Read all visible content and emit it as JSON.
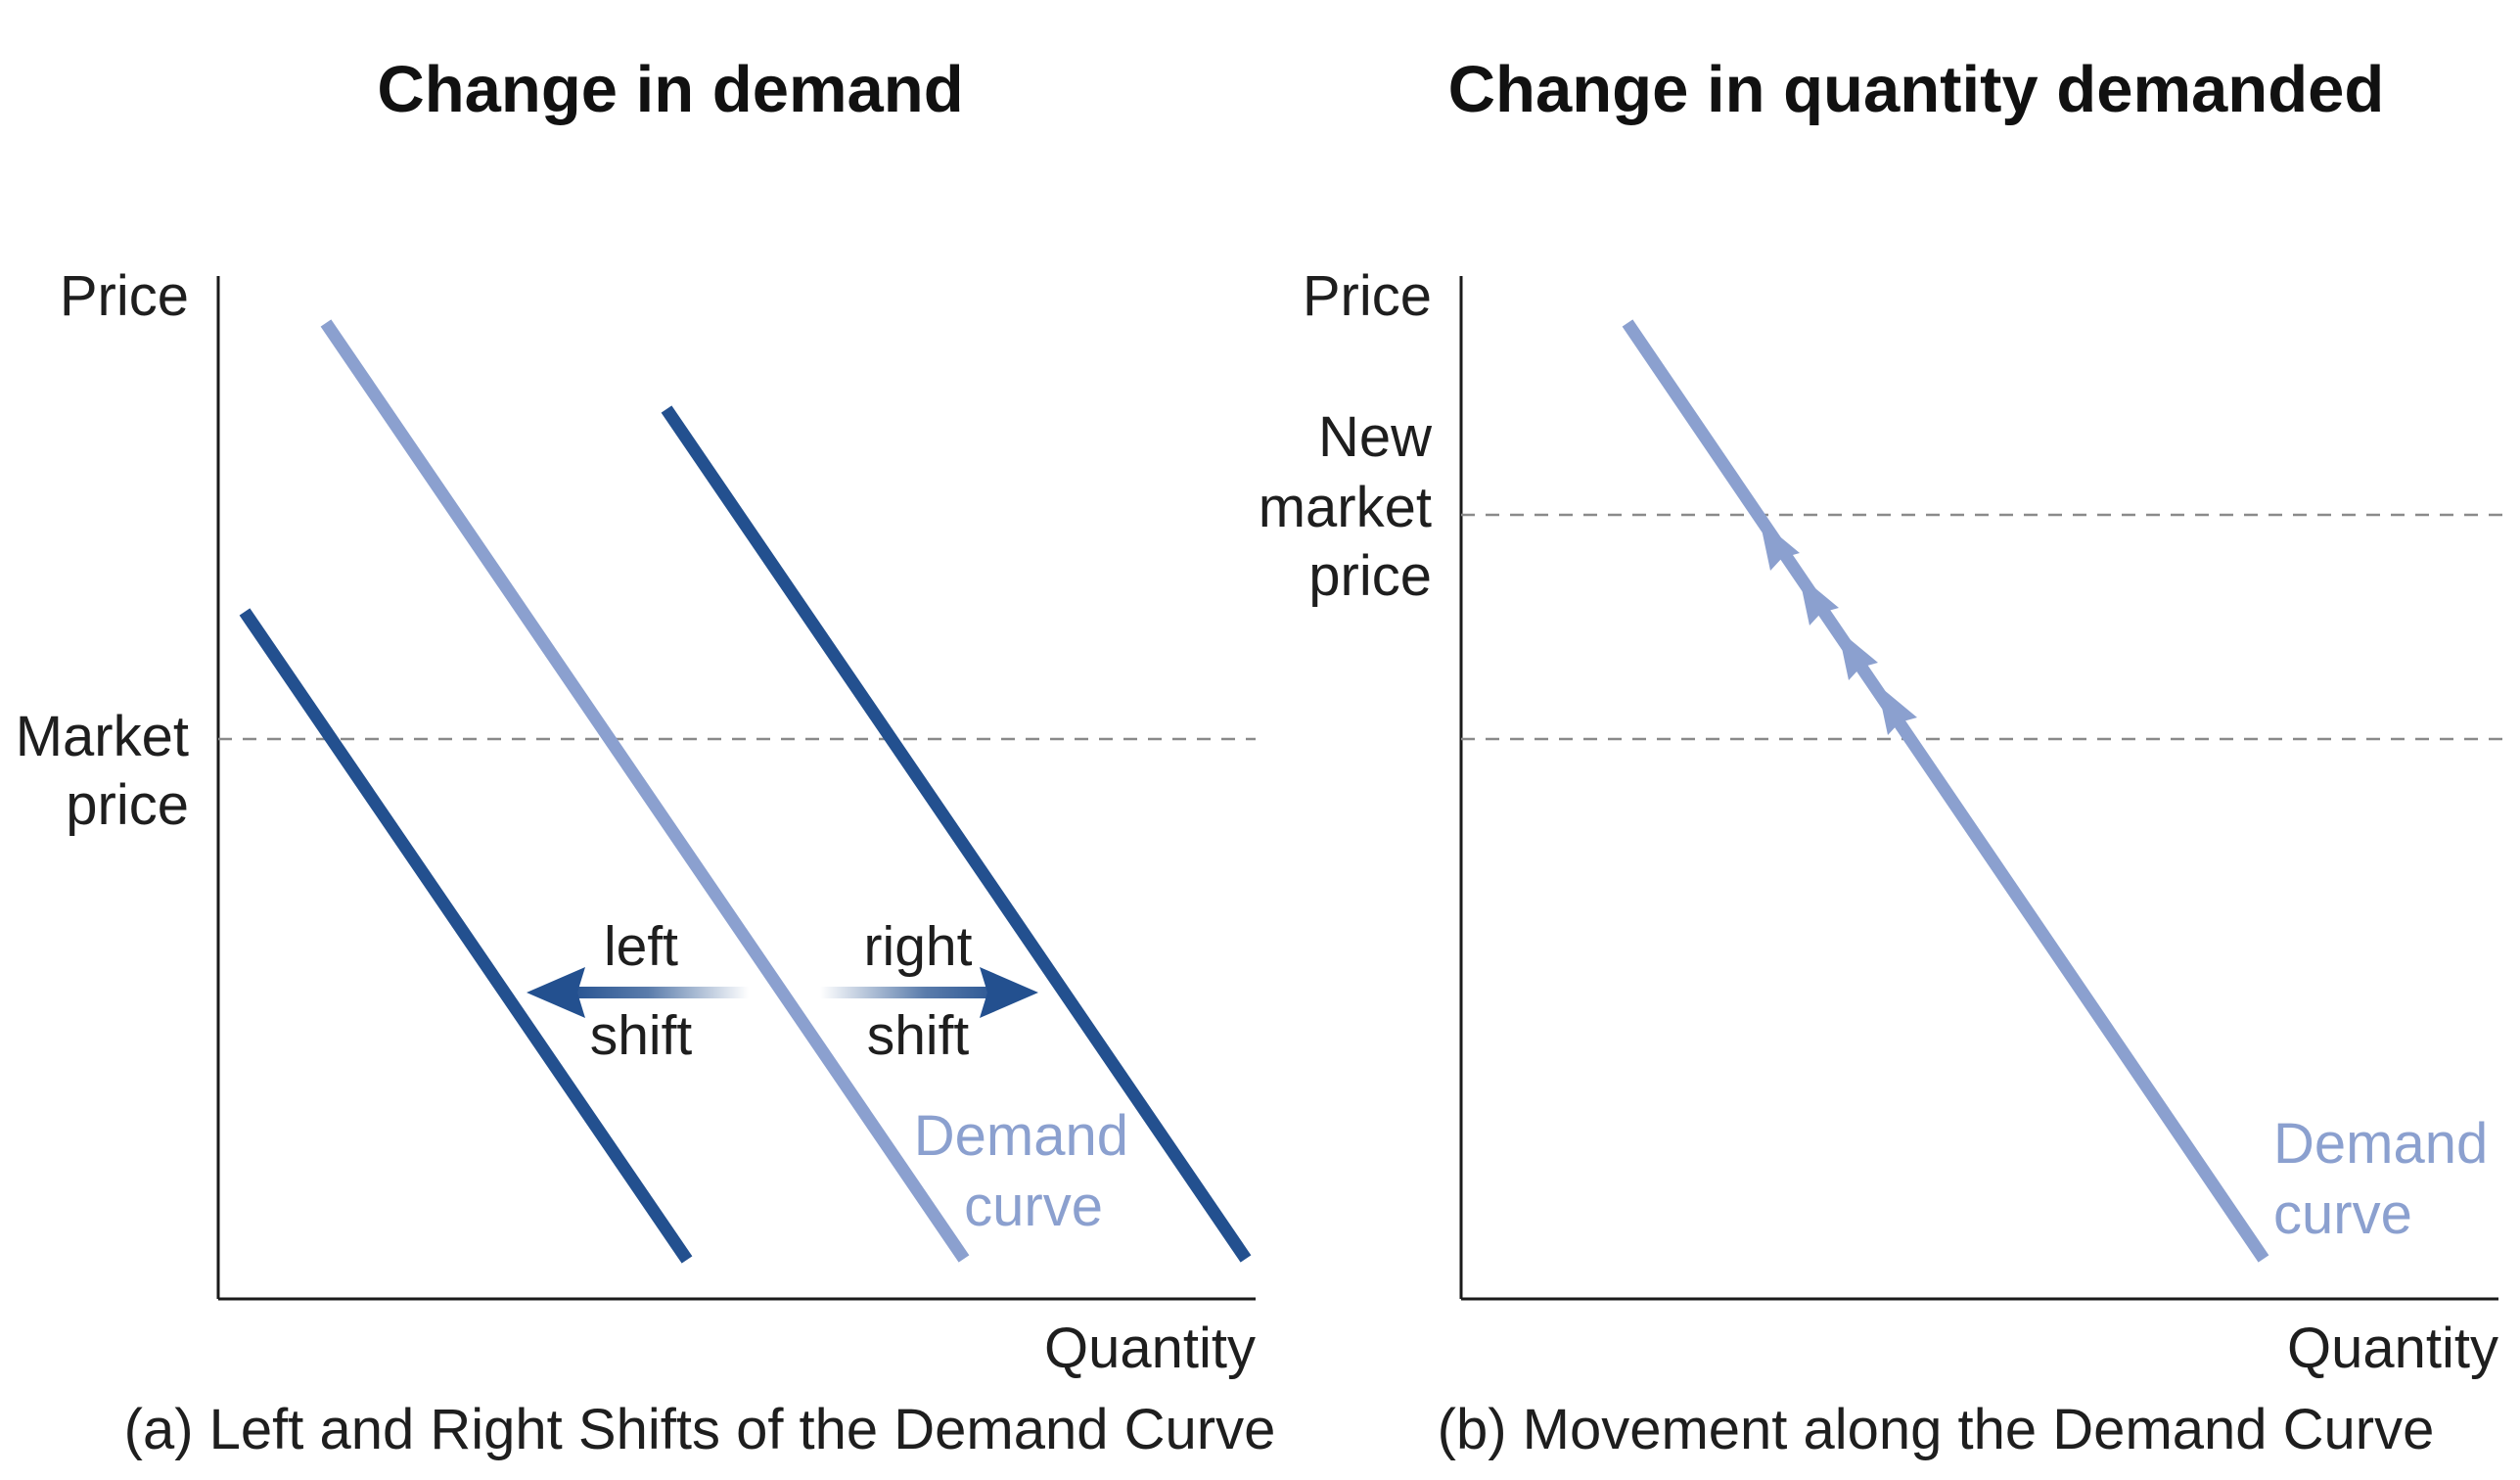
{
  "colors": {
    "original_demand": "#8ba0cf",
    "shifted_demand": "#23508f",
    "axis": "#1a1a1a",
    "guide": "#8a8a8a",
    "text": "#1e1e1e"
  },
  "panel_a": {
    "title": "Change in demand",
    "y_axis_label": "Price",
    "x_axis_label": "Quantity",
    "price_level_label_line1": "Market",
    "price_level_label_line2": "price",
    "left_shift_line1": "left",
    "left_shift_line2": "shift",
    "right_shift_line1": "right",
    "right_shift_line2": "shift",
    "curve_label_line1": "Demand",
    "curve_label_line2": "curve",
    "caption": "(a) Left and Right Shifts of the Demand Curve"
  },
  "panel_b": {
    "title": "Change in quantity demanded",
    "y_axis_label": "Price",
    "x_axis_label": "Quantity",
    "new_price_label_line1": "New",
    "new_price_label_line2": "market",
    "new_price_label_line3": "price",
    "curve_label_line1": "Demand",
    "curve_label_line2": "curve",
    "caption": "(b) Movement along the Demand Curve"
  }
}
